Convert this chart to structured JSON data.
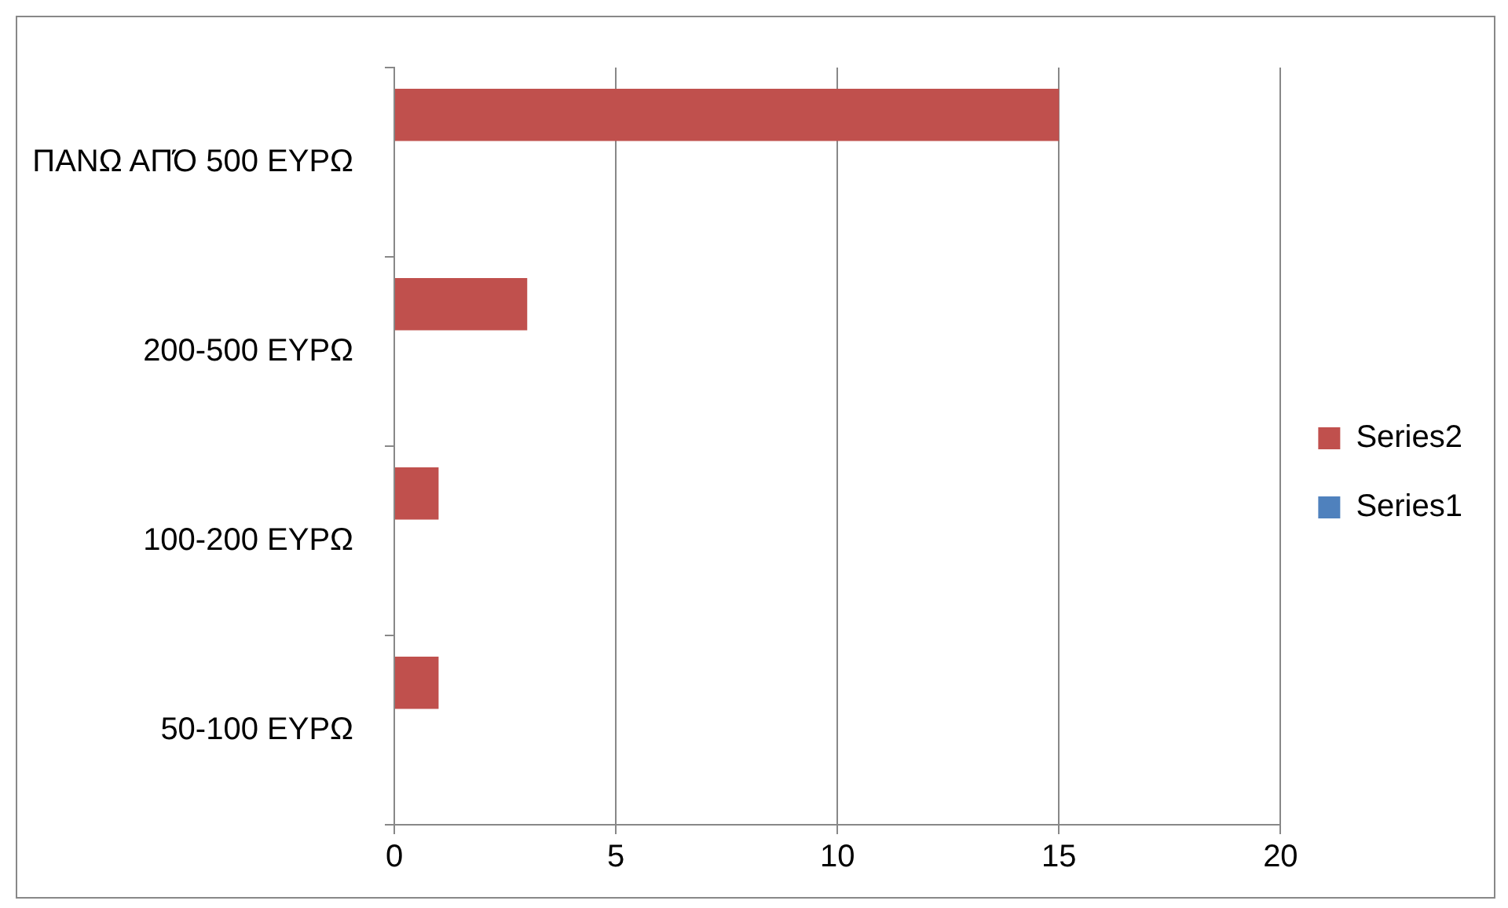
{
  "chart_data": {
    "type": "bar",
    "orientation": "horizontal",
    "categories": [
      "ΠΑΝΩ ΑΠΌ 500 ΕΥΡΩ",
      "200-500 ΕΥΡΩ",
      "100-200 ΕΥΡΩ",
      "50-100 ΕΥΡΩ"
    ],
    "series": [
      {
        "name": "Series2",
        "color": "#c0504d",
        "values": [
          15,
          3,
          1,
          1
        ]
      },
      {
        "name": "Series1",
        "color": "#4f81bd",
        "values": [
          null,
          null,
          null,
          null
        ]
      }
    ],
    "xlim": [
      0,
      20
    ],
    "xticks": [
      0,
      5,
      10,
      15,
      20
    ],
    "grid": "x",
    "legend": "right"
  }
}
